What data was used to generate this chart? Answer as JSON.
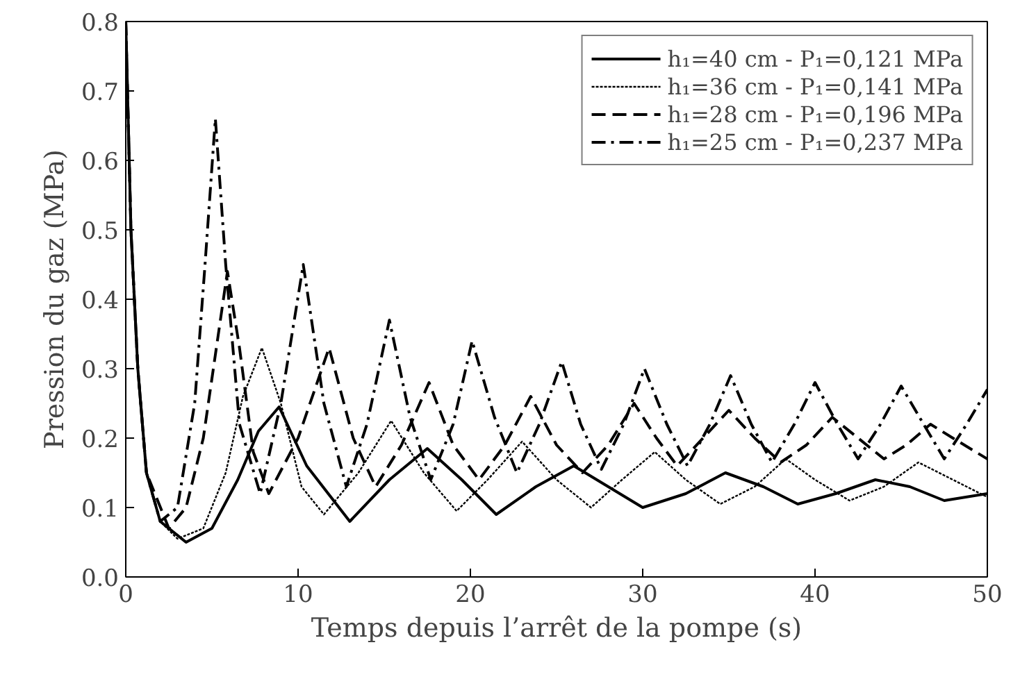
{
  "chart_data": {
    "type": "line",
    "xlabel": "Temps depuis l’arrêt de la pompe (s)",
    "ylabel": "Pression du gaz (MPa)",
    "xlim": [
      0,
      50
    ],
    "ylim": [
      0,
      0.8
    ],
    "xticks": [
      0,
      10,
      20,
      30,
      40,
      50
    ],
    "yticks": [
      {
        "value": 0,
        "label": "0.0"
      },
      0.1,
      0.2,
      0.3,
      0.4,
      0.5,
      0.6,
      0.7,
      0.8
    ],
    "grid": false,
    "legend": "top right",
    "series": [
      {
        "name": "h₁=40 cm - P₁=0,121 MPa",
        "color": "#000000",
        "line_style": "solid",
        "x": [
          0,
          0.3,
          0.7,
          1.2,
          2,
          3.5,
          5,
          6.5,
          7.7,
          8.9,
          10.5,
          13,
          15.3,
          17.5,
          19.5,
          21.5,
          23.8,
          26,
          28,
          30,
          32.5,
          34.8,
          37,
          39,
          41.2,
          43.5,
          45.5,
          47.5,
          50
        ],
        "values": [
          0.8,
          0.5,
          0.3,
          0.15,
          0.08,
          0.05,
          0.07,
          0.14,
          0.21,
          0.245,
          0.16,
          0.08,
          0.14,
          0.185,
          0.14,
          0.09,
          0.13,
          0.16,
          0.13,
          0.1,
          0.12,
          0.15,
          0.13,
          0.105,
          0.12,
          0.14,
          0.13,
          0.11,
          0.12
        ]
      },
      {
        "name": "h₁=36 cm - P₁=0,141 MPa",
        "color": "#000000",
        "line_style": "dotted",
        "x": [
          0,
          0.3,
          0.7,
          1.2,
          2,
          3,
          4.5,
          5.8,
          6.8,
          7.9,
          9,
          10.2,
          11.5,
          13.5,
          15.4,
          17.3,
          19.2,
          21,
          23,
          25,
          27,
          28.8,
          30.7,
          32.5,
          34.5,
          36.5,
          38.3,
          40,
          42,
          44,
          46,
          48,
          50
        ],
        "values": [
          0.8,
          0.5,
          0.3,
          0.15,
          0.08,
          0.055,
          0.07,
          0.15,
          0.26,
          0.33,
          0.25,
          0.13,
          0.09,
          0.15,
          0.225,
          0.15,
          0.095,
          0.14,
          0.195,
          0.14,
          0.1,
          0.14,
          0.18,
          0.14,
          0.105,
          0.13,
          0.17,
          0.14,
          0.11,
          0.13,
          0.165,
          0.14,
          0.115
        ]
      },
      {
        "name": "h₁=28 cm - P₁=0,196 MPa",
        "color": "#000000",
        "line_style": "dashed",
        "x": [
          0,
          0.3,
          0.7,
          1.2,
          2.5,
          3.5,
          4.5,
          5.2,
          5.9,
          6.6,
          7.4,
          8.3,
          10,
          11.8,
          13.2,
          14.5,
          16,
          17.6,
          19,
          20.5,
          22,
          23.5,
          25,
          26.5,
          28,
          29.5,
          30.8,
          32,
          33.5,
          35,
          36.5,
          38,
          39.5,
          41,
          42.5,
          44,
          45.3,
          46.7,
          48,
          50
        ],
        "values": [
          0.8,
          0.5,
          0.3,
          0.15,
          0.07,
          0.1,
          0.2,
          0.32,
          0.44,
          0.33,
          0.18,
          0.12,
          0.2,
          0.33,
          0.2,
          0.13,
          0.19,
          0.28,
          0.19,
          0.14,
          0.19,
          0.26,
          0.19,
          0.15,
          0.19,
          0.25,
          0.2,
          0.16,
          0.2,
          0.24,
          0.2,
          0.165,
          0.19,
          0.23,
          0.2,
          0.17,
          0.19,
          0.22,
          0.2,
          0.17
        ]
      },
      {
        "name": "h₁=25 cm - P₁=0,237 MPa",
        "color": "#000000",
        "line_style": "dashdot",
        "x": [
          0,
          0.3,
          0.7,
          1.2,
          2,
          3,
          4,
          4.6,
          5.2,
          5.8,
          6.6,
          7.8,
          9,
          10.3,
          11.5,
          12.8,
          14,
          15.3,
          16.5,
          17.7,
          19,
          20.1,
          21.4,
          22.7,
          24,
          25.3,
          26.4,
          27.6,
          28.9,
          30.1,
          31.4,
          32.6,
          33.9,
          35.1,
          36.3,
          37.5,
          38.8,
          40,
          41.3,
          42.5,
          43.8,
          45,
          46.3,
          47.5,
          48.8,
          50
        ],
        "values": [
          0.8,
          0.5,
          0.3,
          0.15,
          0.08,
          0.1,
          0.25,
          0.45,
          0.66,
          0.45,
          0.22,
          0.12,
          0.25,
          0.45,
          0.25,
          0.13,
          0.22,
          0.37,
          0.23,
          0.14,
          0.22,
          0.34,
          0.23,
          0.15,
          0.22,
          0.31,
          0.22,
          0.155,
          0.22,
          0.3,
          0.22,
          0.16,
          0.22,
          0.29,
          0.22,
          0.165,
          0.22,
          0.28,
          0.22,
          0.17,
          0.22,
          0.275,
          0.22,
          0.17,
          0.22,
          0.27
        ]
      }
    ]
  }
}
